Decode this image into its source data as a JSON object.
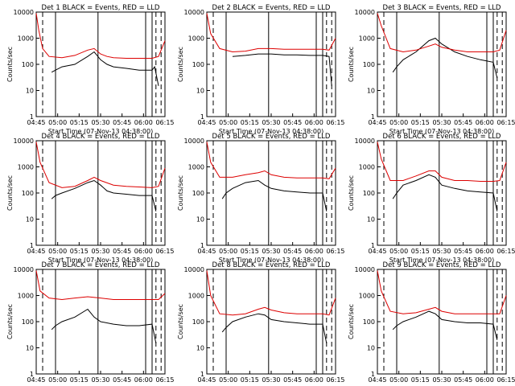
{
  "figure": {
    "ylabel": "Counts/sec",
    "xlabel": "Start Time (07-Nov-13 04:38:00)",
    "legend": "BLACK = Events, RED = LLD",
    "colors": {
      "events": "#000000",
      "lld": "#dd0000"
    }
  },
  "chart_data": [
    {
      "title": "Det 1",
      "type": "line",
      "scale_y": "log",
      "ylim": [
        1,
        10000
      ],
      "xticks": [
        "04:45",
        "05:00",
        "05:15",
        "05:30",
        "05:45",
        "06:00",
        "06:15"
      ],
      "yticks": [
        "1",
        "10",
        "100",
        "1000",
        "10000"
      ],
      "series": [
        {
          "name": "Events",
          "color": "#000000",
          "x": [
            0.12,
            0.15,
            0.2,
            0.3,
            0.4,
            0.45,
            0.5,
            0.55,
            0.6,
            0.7,
            0.8,
            0.9,
            0.92,
            0.95
          ],
          "y": [
            50,
            60,
            80,
            100,
            200,
            300,
            150,
            100,
            80,
            70,
            60,
            60,
            80,
            15
          ]
        },
        {
          "name": "LLD",
          "color": "#dd0000",
          "x": [
            0,
            0.02,
            0.05,
            0.1,
            0.2,
            0.3,
            0.4,
            0.45,
            0.5,
            0.55,
            0.6,
            0.7,
            0.8,
            0.9,
            0.95,
            1
          ],
          "y": [
            9000,
            2000,
            400,
            200,
            180,
            220,
            350,
            400,
            250,
            200,
            180,
            170,
            170,
            170,
            200,
            800
          ]
        }
      ]
    },
    {
      "title": "Det 2",
      "type": "line",
      "scale_y": "log",
      "ylim": [
        1,
        10000
      ],
      "xticks": [
        "04:45",
        "05:00",
        "05:15",
        "05:30",
        "05:45",
        "06:00",
        "06:15"
      ],
      "yticks": [
        "1",
        "10",
        "100",
        "1000",
        "10000"
      ],
      "series": [
        {
          "name": "Events",
          "color": "#000000",
          "x": [
            0.2,
            0.3,
            0.4,
            0.5,
            0.6,
            0.7,
            0.8,
            0.9,
            0.95,
            0.97
          ],
          "y": [
            200,
            220,
            250,
            250,
            230,
            230,
            220,
            220,
            200,
            15
          ]
        },
        {
          "name": "LLD",
          "color": "#dd0000",
          "x": [
            0,
            0.03,
            0.1,
            0.2,
            0.3,
            0.4,
            0.5,
            0.6,
            0.7,
            0.8,
            0.9,
            0.95,
            1
          ],
          "y": [
            9000,
            1500,
            400,
            300,
            320,
            400,
            400,
            380,
            380,
            380,
            380,
            350,
            1000
          ]
        }
      ]
    },
    {
      "title": "Det 3",
      "type": "line",
      "scale_y": "log",
      "ylim": [
        1,
        10000
      ],
      "xticks": [
        "04:45",
        "05:00",
        "05:15",
        "05:30",
        "05:45",
        "06:00",
        "06:15"
      ],
      "yticks": [
        "1",
        "10",
        "100",
        "1000",
        "10000"
      ],
      "series": [
        {
          "name": "Events",
          "color": "#000000",
          "x": [
            0.12,
            0.15,
            0.2,
            0.3,
            0.4,
            0.45,
            0.5,
            0.6,
            0.7,
            0.8,
            0.9,
            0.93
          ],
          "y": [
            50,
            80,
            150,
            300,
            800,
            1000,
            600,
            300,
            200,
            150,
            120,
            30
          ]
        },
        {
          "name": "LLD",
          "color": "#dd0000",
          "x": [
            0,
            0.03,
            0.1,
            0.2,
            0.3,
            0.4,
            0.45,
            0.5,
            0.6,
            0.7,
            0.8,
            0.9,
            0.95,
            1
          ],
          "y": [
            9000,
            3000,
            400,
            300,
            350,
            500,
            600,
            450,
            350,
            300,
            300,
            300,
            350,
            2000
          ]
        }
      ]
    },
    {
      "title": "Det 4",
      "type": "line",
      "scale_y": "log",
      "ylim": [
        1,
        10000
      ],
      "xticks": [
        "04:45",
        "05:00",
        "05:15",
        "05:30",
        "05:45",
        "06:00",
        "06:15"
      ],
      "yticks": [
        "1",
        "10",
        "100",
        "1000",
        "10000"
      ],
      "series": [
        {
          "name": "Events",
          "color": "#000000",
          "x": [
            0.12,
            0.15,
            0.2,
            0.3,
            0.4,
            0.45,
            0.5,
            0.55,
            0.6,
            0.7,
            0.8,
            0.9,
            0.93
          ],
          "y": [
            60,
            80,
            100,
            150,
            250,
            300,
            200,
            120,
            100,
            90,
            80,
            80,
            20
          ]
        },
        {
          "name": "LLD",
          "color": "#dd0000",
          "x": [
            0,
            0.03,
            0.1,
            0.2,
            0.3,
            0.4,
            0.45,
            0.5,
            0.6,
            0.7,
            0.8,
            0.9,
            0.95,
            1
          ],
          "y": [
            9000,
            1500,
            250,
            160,
            180,
            300,
            400,
            300,
            200,
            180,
            170,
            160,
            180,
            900
          ]
        }
      ]
    },
    {
      "title": "Det 5",
      "type": "line",
      "scale_y": "log",
      "ylim": [
        1,
        10000
      ],
      "xticks": [
        "04:45",
        "05:00",
        "05:15",
        "05:30",
        "05:45",
        "06:00",
        "06:15"
      ],
      "yticks": [
        "1",
        "10",
        "100",
        "1000",
        "10000"
      ],
      "series": [
        {
          "name": "Events",
          "color": "#000000",
          "x": [
            0.12,
            0.15,
            0.2,
            0.3,
            0.4,
            0.45,
            0.5,
            0.6,
            0.7,
            0.8,
            0.9,
            0.93
          ],
          "y": [
            60,
            100,
            150,
            250,
            300,
            200,
            150,
            120,
            110,
            100,
            100,
            20
          ]
        },
        {
          "name": "LLD",
          "color": "#dd0000",
          "x": [
            0,
            0.03,
            0.1,
            0.2,
            0.3,
            0.4,
            0.45,
            0.5,
            0.6,
            0.7,
            0.8,
            0.9,
            0.95,
            1
          ],
          "y": [
            9000,
            1500,
            400,
            400,
            500,
            600,
            700,
            500,
            400,
            380,
            380,
            380,
            350,
            900
          ]
        }
      ]
    },
    {
      "title": "Det 6",
      "type": "line",
      "scale_y": "log",
      "ylim": [
        1,
        10000
      ],
      "xticks": [
        "04:45",
        "05:00",
        "05:15",
        "05:30",
        "05:45",
        "06:00",
        "06:15"
      ],
      "yticks": [
        "1",
        "10",
        "100",
        "1000",
        "10000"
      ],
      "series": [
        {
          "name": "Events",
          "color": "#000000",
          "x": [
            0.12,
            0.15,
            0.2,
            0.3,
            0.4,
            0.45,
            0.5,
            0.6,
            0.7,
            0.8,
            0.9,
            0.93
          ],
          "y": [
            60,
            100,
            200,
            300,
            500,
            400,
            200,
            150,
            120,
            110,
            100,
            20
          ]
        },
        {
          "name": "LLD",
          "color": "#dd0000",
          "x": [
            0,
            0.03,
            0.1,
            0.2,
            0.3,
            0.4,
            0.45,
            0.5,
            0.6,
            0.7,
            0.8,
            0.9,
            0.95,
            1
          ],
          "y": [
            9000,
            2000,
            300,
            300,
            450,
            700,
            700,
            400,
            300,
            300,
            280,
            280,
            300,
            1500
          ]
        }
      ]
    },
    {
      "title": "Det 7",
      "type": "line",
      "scale_y": "log",
      "ylim": [
        1,
        10000
      ],
      "xticks": [
        "04:45",
        "05:00",
        "05:15",
        "05:30",
        "05:45",
        "06:00",
        "06:15"
      ],
      "yticks": [
        "1",
        "10",
        "100",
        "1000",
        "10000"
      ],
      "series": [
        {
          "name": "Events",
          "color": "#000000",
          "x": [
            0.12,
            0.15,
            0.2,
            0.3,
            0.4,
            0.45,
            0.5,
            0.6,
            0.7,
            0.8,
            0.9,
            0.93
          ],
          "y": [
            50,
            70,
            100,
            150,
            300,
            150,
            100,
            80,
            70,
            70,
            80,
            15
          ]
        },
        {
          "name": "LLD",
          "color": "#dd0000",
          "x": [
            0,
            0.03,
            0.1,
            0.2,
            0.3,
            0.4,
            0.5,
            0.6,
            0.7,
            0.8,
            0.9,
            0.95,
            1
          ],
          "y": [
            9000,
            1500,
            800,
            700,
            800,
            900,
            800,
            700,
            700,
            700,
            700,
            700,
            1200
          ]
        }
      ]
    },
    {
      "title": "Det 8",
      "type": "line",
      "scale_y": "log",
      "ylim": [
        1,
        10000
      ],
      "xticks": [
        "04:45",
        "05:00",
        "05:15",
        "05:30",
        "05:45",
        "06:00",
        "06:15"
      ],
      "yticks": [
        "1",
        "10",
        "100",
        "1000",
        "10000"
      ],
      "series": [
        {
          "name": "Events",
          "color": "#000000",
          "x": [
            0.12,
            0.15,
            0.2,
            0.3,
            0.4,
            0.45,
            0.5,
            0.6,
            0.7,
            0.8,
            0.9,
            0.93
          ],
          "y": [
            40,
            60,
            100,
            150,
            200,
            180,
            120,
            100,
            90,
            80,
            80,
            15
          ]
        },
        {
          "name": "LLD",
          "color": "#dd0000",
          "x": [
            0,
            0.03,
            0.1,
            0.2,
            0.3,
            0.4,
            0.45,
            0.5,
            0.6,
            0.7,
            0.8,
            0.9,
            0.95,
            1
          ],
          "y": [
            9000,
            1000,
            200,
            180,
            200,
            300,
            350,
            280,
            220,
            200,
            200,
            200,
            180,
            800
          ]
        }
      ]
    },
    {
      "title": "Det 9",
      "type": "line",
      "scale_y": "log",
      "ylim": [
        1,
        10000
      ],
      "xticks": [
        "04:45",
        "05:00",
        "05:15",
        "05:30",
        "05:45",
        "06:00",
        "06:15"
      ],
      "yticks": [
        "1",
        "10",
        "100",
        "1000",
        "10000"
      ],
      "series": [
        {
          "name": "Events",
          "color": "#000000",
          "x": [
            0.12,
            0.15,
            0.2,
            0.3,
            0.4,
            0.45,
            0.5,
            0.6,
            0.7,
            0.8,
            0.9,
            0.93
          ],
          "y": [
            50,
            70,
            100,
            150,
            250,
            200,
            120,
            100,
            90,
            90,
            80,
            20
          ]
        },
        {
          "name": "LLD",
          "color": "#dd0000",
          "x": [
            0,
            0.03,
            0.1,
            0.2,
            0.3,
            0.4,
            0.45,
            0.5,
            0.6,
            0.7,
            0.8,
            0.9,
            0.95,
            1
          ],
          "y": [
            9000,
            1500,
            250,
            200,
            220,
            300,
            350,
            250,
            200,
            200,
            200,
            200,
            200,
            1000
          ]
        }
      ]
    }
  ]
}
